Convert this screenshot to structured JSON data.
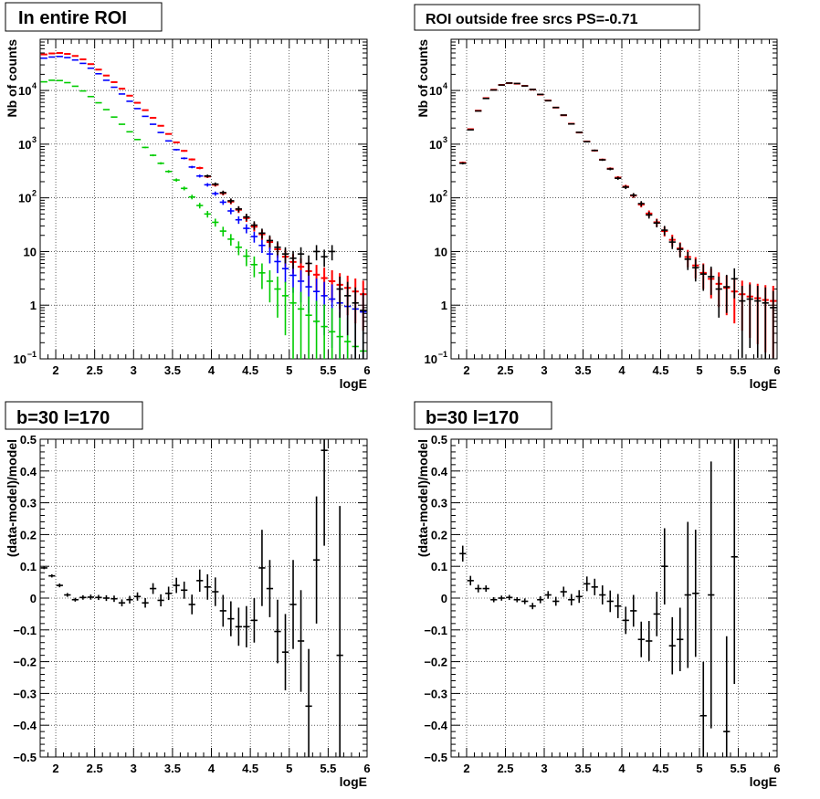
{
  "chart_data": [
    {
      "type": "scatter",
      "title": "In entire ROI",
      "xlabel": "logE",
      "ylabel": "Nb of counts",
      "xlim": [
        1.8,
        6.0
      ],
      "ylim": [
        0.1,
        90000
      ],
      "yscale": "log",
      "grid": true,
      "x_ticks": [
        "2",
        "2.5",
        "3",
        "3.5",
        "4",
        "4.5",
        "5",
        "5.5",
        "6"
      ],
      "y_ticks": [
        {
          "v": 0.1,
          "base": "10",
          "exp": "−1"
        },
        {
          "v": 1,
          "label": "1"
        },
        {
          "v": 10,
          "label": "10"
        },
        {
          "v": 100,
          "base": "10",
          "exp": "2"
        },
        {
          "v": 1000,
          "base": "10",
          "exp": "3"
        },
        {
          "v": 10000,
          "base": "10",
          "exp": "4"
        }
      ],
      "series": [
        {
          "color": "#ff0000",
          "x": [
            1.85,
            1.95,
            2.05,
            2.15,
            2.25,
            2.35,
            2.45,
            2.55,
            2.65,
            2.75,
            2.85,
            2.95,
            3.05,
            3.15,
            3.25,
            3.35,
            3.45,
            3.55,
            3.65,
            3.75,
            3.85,
            3.95,
            4.05,
            4.15,
            4.25,
            4.35,
            4.45,
            4.55,
            4.65,
            4.75,
            4.85,
            4.95,
            5.05,
            5.15,
            5.25,
            5.35,
            5.45,
            5.55,
            5.65,
            5.75,
            5.85,
            5.95
          ],
          "y": [
            47000,
            49000,
            50000,
            48000,
            44000,
            38000,
            31000,
            24500,
            19000,
            14300,
            10800,
            8000,
            5900,
            4300,
            3100,
            2200,
            1550,
            1080,
            750,
            520,
            360,
            250,
            175,
            122,
            85,
            60,
            42,
            29,
            21,
            15,
            11,
            8,
            6.4,
            5.2,
            4.3,
            3.7,
            3.2,
            2.8,
            2.4,
            2.1,
            1.8,
            1.6
          ]
        },
        {
          "color": "#0000ff",
          "x": [
            1.85,
            1.95,
            2.05,
            2.15,
            2.25,
            2.35,
            2.45,
            2.55,
            2.65,
            2.75,
            2.85,
            2.95,
            3.05,
            3.15,
            3.25,
            3.35,
            3.45,
            3.55,
            3.65,
            3.75,
            3.85,
            3.95,
            4.05,
            4.15,
            4.25,
            4.35,
            4.45,
            4.55,
            4.65,
            4.75,
            4.85,
            4.95,
            5.05,
            5.15,
            5.25,
            5.35,
            5.45,
            5.55,
            5.65,
            5.75,
            5.85,
            5.95
          ],
          "y": [
            40000,
            42000,
            43000,
            41000,
            37000,
            32000,
            26000,
            20500,
            15500,
            11500,
            8600,
            6300,
            4600,
            3300,
            2350,
            1650,
            1150,
            790,
            545,
            375,
            255,
            175,
            120,
            83,
            57,
            39,
            27,
            19,
            13,
            9,
            6.5,
            4.8,
            3.6,
            2.8,
            2.2,
            1.8,
            1.5,
            1.3,
            1.1,
            0.95,
            0.85,
            0.75
          ]
        },
        {
          "color": "#00cc00",
          "x": [
            1.85,
            1.95,
            2.05,
            2.15,
            2.25,
            2.35,
            2.45,
            2.55,
            2.65,
            2.75,
            2.85,
            2.95,
            3.05,
            3.15,
            3.25,
            3.35,
            3.45,
            3.55,
            3.65,
            3.75,
            3.85,
            3.95,
            4.05,
            4.15,
            4.25,
            4.35,
            4.45,
            4.55,
            4.65,
            4.75,
            4.85,
            4.95,
            5.05,
            5.15,
            5.25,
            5.35,
            5.45,
            5.55,
            5.65,
            5.75,
            5.85,
            5.95
          ],
          "y": [
            14500,
            15500,
            15300,
            14000,
            12000,
            9800,
            7700,
            5900,
            4400,
            3200,
            2350,
            1700,
            1220,
            870,
            620,
            440,
            310,
            215,
            150,
            104,
            72,
            50,
            35,
            24,
            17,
            12,
            8.2,
            5.7,
            4,
            2.8,
            2,
            1.5,
            1.1,
            0.85,
            0.65,
            0.5,
            0.4,
            0.32,
            0.26,
            0.21,
            0.17,
            0.14
          ]
        },
        {
          "color": "#000000",
          "x": [
            3.95,
            4.05,
            4.15,
            4.25,
            4.35,
            4.45,
            4.55,
            4.65,
            4.75,
            4.85,
            4.95,
            5.05,
            5.15,
            5.25,
            5.35,
            5.45,
            5.55,
            5.65,
            5.75,
            5.85,
            5.95
          ],
          "y": [
            255,
            180,
            125,
            88,
            62,
            44,
            31,
            22,
            16,
            12,
            9,
            7.5,
            9,
            6,
            10,
            8,
            10,
            2,
            1.5,
            1.1,
            0.8
          ]
        }
      ]
    },
    {
      "type": "scatter",
      "title": "ROI outside free srcs PS=-0.71",
      "xlabel": "logE",
      "ylabel": "Nb of counts",
      "xlim": [
        1.8,
        6.0
      ],
      "ylim": [
        0.1,
        90000
      ],
      "yscale": "log",
      "grid": true,
      "x_ticks": [
        "2",
        "2.5",
        "3",
        "3.5",
        "4",
        "4.5",
        "5",
        "5.5",
        "6"
      ],
      "y_ticks": [
        {
          "v": 0.1,
          "base": "10",
          "exp": "−1"
        },
        {
          "v": 1,
          "label": "1"
        },
        {
          "v": 10,
          "label": "10"
        },
        {
          "v": 100,
          "base": "10",
          "exp": "2"
        },
        {
          "v": 1000,
          "base": "10",
          "exp": "3"
        },
        {
          "v": 10000,
          "base": "10",
          "exp": "4"
        }
      ],
      "series": [
        {
          "color": "#ff0000",
          "x": [
            1.95,
            2.05,
            2.15,
            2.25,
            2.35,
            2.45,
            2.55,
            2.65,
            2.75,
            2.85,
            2.95,
            3.05,
            3.15,
            3.25,
            3.35,
            3.45,
            3.55,
            3.65,
            3.75,
            3.85,
            3.95,
            4.05,
            4.15,
            4.25,
            4.35,
            4.45,
            4.55,
            4.65,
            4.75,
            4.85,
            4.95,
            5.05,
            5.15,
            5.25,
            5.35,
            5.45,
            5.55,
            5.65,
            5.75,
            5.85,
            5.95
          ],
          "y": [
            450,
            1900,
            4200,
            7200,
            10300,
            12700,
            13700,
            13400,
            12200,
            10400,
            8400,
            6500,
            4800,
            3450,
            2400,
            1650,
            1120,
            760,
            515,
            350,
            238,
            162,
            110,
            75,
            51,
            35,
            24,
            16.5,
            11.4,
            7.9,
            5.5,
            4,
            3.1,
            2.5,
            2.1,
            1.8,
            1.6,
            1.45,
            1.35,
            1.25,
            1.2
          ]
        },
        {
          "color": "#000000",
          "x": [
            1.95,
            2.05,
            2.15,
            2.25,
            2.35,
            2.45,
            2.55,
            2.65,
            2.75,
            2.85,
            2.95,
            3.05,
            3.15,
            3.25,
            3.35,
            3.45,
            3.55,
            3.65,
            3.75,
            3.85,
            3.95,
            4.05,
            4.15,
            4.25,
            4.35,
            4.45,
            4.55,
            4.65,
            4.75,
            4.85,
            4.95,
            5.05,
            5.15,
            5.25,
            5.35,
            5.45,
            5.55,
            5.65,
            5.75,
            5.85,
            5.95
          ],
          "y": [
            440,
            1850,
            4150,
            7100,
            10200,
            12650,
            13750,
            13500,
            12150,
            10450,
            8450,
            6450,
            4820,
            3480,
            2380,
            1660,
            1110,
            765,
            510,
            345,
            232,
            158,
            112,
            78,
            48,
            34,
            25,
            15,
            11,
            7.2,
            5,
            3.8,
            3.4,
            2,
            2.2,
            3.1,
            1.2,
            1.3,
            1.2,
            1.1,
            0.9
          ]
        }
      ]
    },
    {
      "type": "scatter",
      "title": "b=30 l=170",
      "xlabel": "logE",
      "ylabel": "(data-model)/model",
      "xlim": [
        1.8,
        6.0
      ],
      "ylim": [
        -0.5,
        0.5
      ],
      "grid": true,
      "x_ticks": [
        "2",
        "2.5",
        "3",
        "3.5",
        "4",
        "4.5",
        "5",
        "5.5",
        "6"
      ],
      "y_ticks": [
        "−0.5",
        "−0.4",
        "−0.3",
        "−0.2",
        "−0.1",
        "0",
        "0.1",
        "0.2",
        "0.3",
        "0.4",
        "0.5"
      ],
      "series": [
        {
          "color": "#000000",
          "x": [
            1.85,
            1.95,
            2.05,
            2.15,
            2.25,
            2.35,
            2.45,
            2.55,
            2.65,
            2.75,
            2.85,
            2.95,
            3.05,
            3.15,
            3.25,
            3.35,
            3.45,
            3.55,
            3.65,
            3.75,
            3.85,
            3.95,
            4.05,
            4.15,
            4.25,
            4.35,
            4.45,
            4.55,
            4.65,
            4.75,
            4.85,
            4.95,
            5.05,
            5.15,
            5.25,
            5.35,
            5.45,
            5.55,
            5.65
          ],
          "y": [
            0.095,
            0.07,
            0.04,
            0.01,
            -0.005,
            0.002,
            0.003,
            0.002,
            0,
            -0.002,
            -0.015,
            -0.005,
            0.005,
            -0.015,
            0.03,
            -0.007,
            0.015,
            0.04,
            0.025,
            -0.02,
            0.055,
            0.035,
            0.02,
            -0.04,
            -0.065,
            -0.09,
            -0.09,
            -0.07,
            0.095,
            0.03,
            -0.105,
            -0.17,
            -0.02,
            -0.135,
            -0.34,
            0.12,
            0.465,
            null,
            -0.18
          ],
          "err": [
            0.004,
            0.005,
            0.006,
            0.006,
            0.006,
            0.007,
            0.008,
            0.008,
            0.009,
            0.01,
            0.011,
            0.012,
            0.013,
            0.015,
            0.017,
            0.019,
            0.021,
            0.024,
            0.027,
            0.031,
            0.035,
            0.04,
            0.045,
            0.05,
            0.055,
            0.06,
            0.065,
            0.07,
            0.12,
            0.09,
            0.1,
            0.12,
            0.14,
            0.16,
            0.18,
            0.2,
            0.3,
            null,
            0.47
          ]
        }
      ]
    },
    {
      "type": "scatter",
      "title": "b=30 l=170",
      "xlabel": "logE",
      "ylabel": "(data-model)/model",
      "xlim": [
        1.8,
        6.0
      ],
      "ylim": [
        -0.5,
        0.5
      ],
      "grid": true,
      "x_ticks": [
        "2",
        "2.5",
        "3",
        "3.5",
        "4",
        "4.5",
        "5",
        "5.5",
        "6"
      ],
      "y_ticks": [
        "−0.5",
        "−0.4",
        "−0.3",
        "−0.2",
        "−0.1",
        "0",
        "0.1",
        "0.2",
        "0.3",
        "0.4",
        "0.5"
      ],
      "series": [
        {
          "color": "#000000",
          "x": [
            1.95,
            2.05,
            2.15,
            2.25,
            2.35,
            2.45,
            2.55,
            2.65,
            2.75,
            2.85,
            2.95,
            3.05,
            3.15,
            3.25,
            3.35,
            3.45,
            3.55,
            3.65,
            3.75,
            3.85,
            3.95,
            4.05,
            4.15,
            4.25,
            4.35,
            4.45,
            4.55,
            4.65,
            4.75,
            4.85,
            4.95,
            5.05,
            5.15,
            5.25,
            5.35,
            5.45,
            5.55,
            5.65
          ],
          "y": [
            0.14,
            0.055,
            0.03,
            0.03,
            -0.005,
            0,
            0.002,
            -0.005,
            -0.01,
            -0.025,
            -0.005,
            0.01,
            -0.01,
            0.02,
            -0.005,
            0.005,
            0.045,
            0.035,
            0.01,
            -0.01,
            -0.025,
            -0.07,
            -0.04,
            -0.13,
            -0.135,
            -0.05,
            0.1,
            -0.15,
            -0.13,
            0.01,
            0.015,
            -0.37,
            0.01,
            null,
            -0.42,
            0.13,
            null,
            null
          ],
          "err": [
            0.025,
            0.015,
            0.012,
            0.01,
            0.008,
            0.008,
            0.008,
            0.008,
            0.009,
            0.01,
            0.011,
            0.012,
            0.014,
            0.016,
            0.018,
            0.02,
            0.023,
            0.026,
            0.03,
            0.034,
            0.038,
            0.043,
            0.05,
            0.056,
            0.063,
            0.07,
            0.12,
            0.09,
            0.1,
            0.23,
            0.2,
            0.17,
            0.42,
            null,
            0.3,
            0.4,
            null,
            null
          ]
        }
      ]
    }
  ]
}
